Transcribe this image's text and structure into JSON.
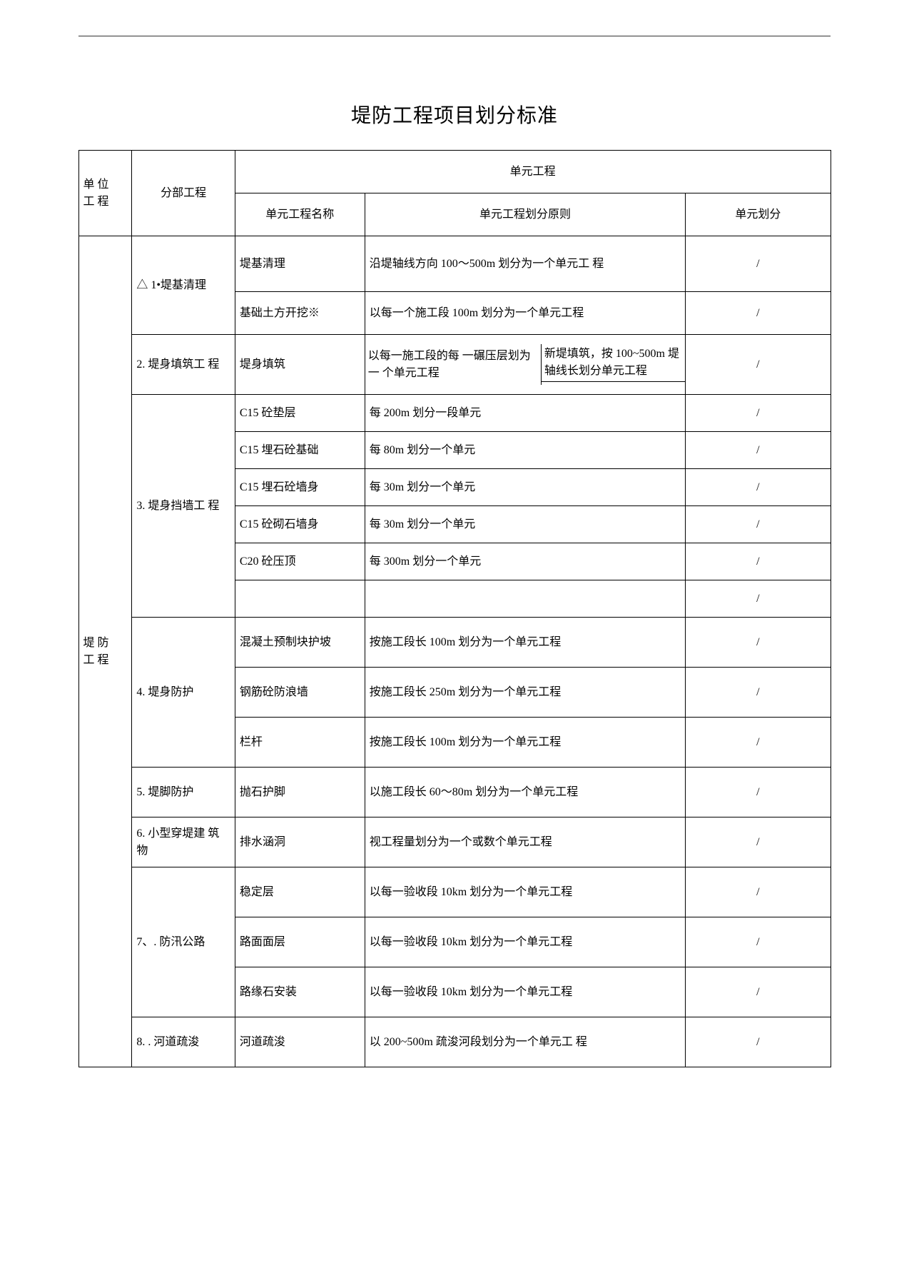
{
  "title": "堤防工程项目划分标准",
  "colors": {
    "text": "#000000",
    "border": "#000000",
    "background": "#ffffff",
    "rule": "#333333"
  },
  "typography": {
    "title_fontsize_pt": 21,
    "body_fontsize_pt": 12,
    "font_family": "SimSun"
  },
  "columns": {
    "unit_project": "单 位\n工 程",
    "sub_project": "分部工程",
    "unit_eng_group": "单元工程",
    "unit_eng_name": "单元工程名称",
    "unit_eng_rule": "单元工程划分原则",
    "unit_division": "单元划分"
  },
  "unit_project_label": "堤 防\n工 程",
  "sections": [
    {
      "sub": "△ 1•堤基清理",
      "rows": [
        {
          "name": "堤基清理",
          "rule": "沿堤轴线方向 100〜500m 划分为一个单元工 程",
          "div": "/"
        },
        {
          "name": "基础土方开挖※",
          "rule": "以每一个施工段 100m 划分为一个单元工程",
          "div": "/"
        }
      ]
    },
    {
      "sub": "2. 堤身填筑工 程",
      "rows": [
        {
          "name": "堤身填筑",
          "rule_split": {
            "left": "以每一施工段的每 一碾压层划为一 个单元工程",
            "right_top": "新堤填筑，按 100~500m 堤轴线长划分单元工程",
            "right_bottom": ""
          },
          "div": "/"
        }
      ]
    },
    {
      "sub": "3. 堤身挡墙工 程",
      "rows": [
        {
          "name": "C15 砼垫层",
          "rule": "每 200m 划分一段单元",
          "div": "/"
        },
        {
          "name": "C15 埋石砼基础",
          "rule": "每 80m 划分一个单元",
          "div": "/"
        },
        {
          "name": "C15 埋石砼墙身",
          "rule": "每 30m 划分一个单元",
          "div": "/"
        },
        {
          "name": "C15 砼砌石墙身",
          "rule": "每 30m 划分一个单元",
          "div": "/"
        },
        {
          "name": "C20 砼压顶",
          "rule": "每 300m 划分一个单元",
          "div": "/"
        },
        {
          "name": "",
          "rule": "",
          "div": "/"
        }
      ]
    },
    {
      "sub": "4. 堤身防护",
      "rows": [
        {
          "name": "混凝土预制块护坡",
          "rule": "按施工段长 100m 划分为一个单元工程",
          "div": "/"
        },
        {
          "name": "钢筋砼防浪墙",
          "rule": "按施工段长 250m 划分为一个单元工程",
          "div": "/"
        },
        {
          "name": "栏杆",
          "rule": "按施工段长 100m 划分为一个单元工程",
          "div": "/"
        }
      ]
    },
    {
      "sub": "5. 堤脚防护",
      "rows": [
        {
          "name": "抛石护脚",
          "rule": "以施工段长 60〜80m 划分为一个单元工程",
          "div": "/"
        }
      ]
    },
    {
      "sub": "6. 小型穿堤建 筑物",
      "rows": [
        {
          "name": "排水涵洞",
          "rule": "视工程量划分为一个或数个单元工程",
          "div": "/"
        }
      ]
    },
    {
      "sub": "7、. 防汛公路",
      "rows": [
        {
          "name": "稳定层",
          "rule": "以每一验收段 10km 划分为一个单元工程",
          "div": "/"
        },
        {
          "name": "路面面层",
          "rule": "以每一验收段 10km 划分为一个单元工程",
          "div": "/"
        },
        {
          "name": "路缘石安装",
          "rule": "以每一验收段 10km 划分为一个单元工程",
          "div": "/"
        }
      ]
    },
    {
      "sub": "8. . 河道疏浚",
      "rows": [
        {
          "name": "河道疏浚",
          "rule": "以 200~500m 疏浚河段划分为一个单元工 程",
          "div": "/"
        }
      ]
    }
  ]
}
